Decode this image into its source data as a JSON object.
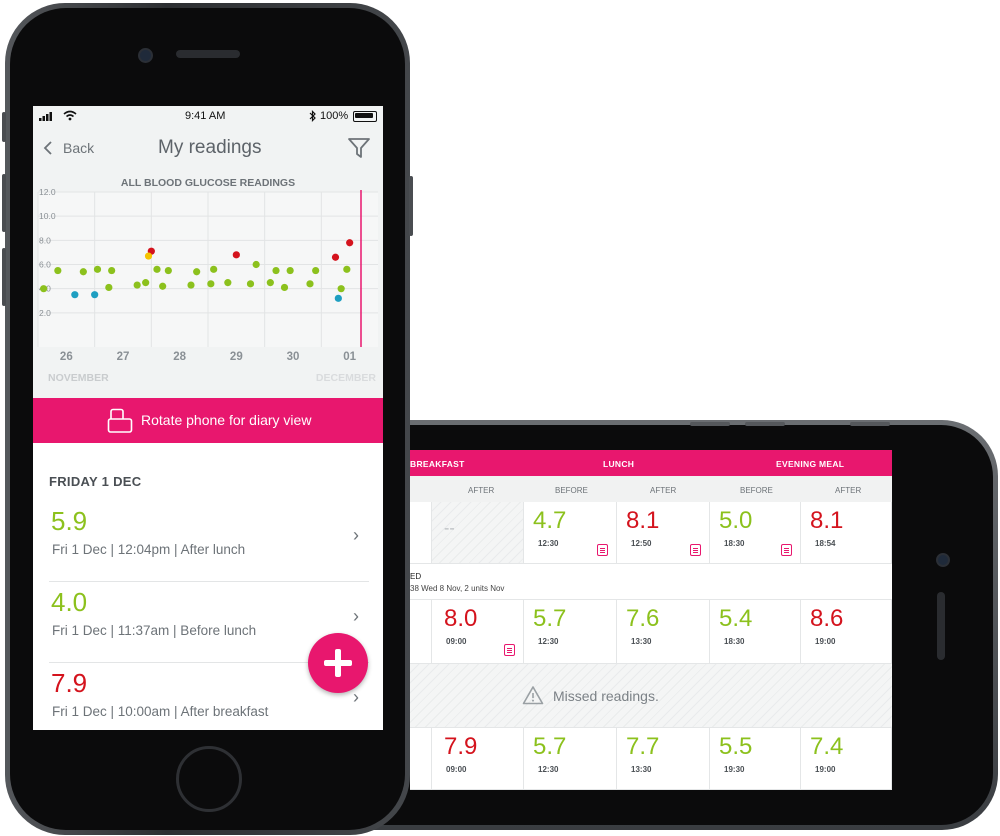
{
  "portrait": {
    "status_bar": {
      "time": "9:41 AM",
      "battery": "100%"
    },
    "nav": {
      "back_label": "Back",
      "title": "My readings"
    },
    "chart_title": "ALL BLOOD GLUCOSE READINGS",
    "rotate_label": "Rotate phone for diary view",
    "section_header": "FRIDAY 1 DEC",
    "readings": [
      {
        "value": "5.9",
        "detail": "Fri 1 Dec | 12:04pm | After lunch",
        "color": "#8cc11d"
      },
      {
        "value": "4.0",
        "detail": "Fri 1 Dec | 11:37am | Before lunch",
        "color": "#8cc11d"
      },
      {
        "value": "7.9",
        "detail": "Fri 1 Dec | 10:00am | After breakfast",
        "color": "#d4131d"
      }
    ]
  },
  "chart_data": {
    "type": "scatter",
    "title": "ALL BLOOD GLUCOSE READINGS",
    "y_ticks": [
      "12.0",
      "10.0",
      "8.0",
      "6.0",
      "4.0",
      "2.0"
    ],
    "ylim": [
      0,
      12
    ],
    "x_ticks": [
      "26",
      "27",
      "28",
      "29",
      "30",
      "01"
    ],
    "month_labels": [
      "NOVEMBER",
      "DECEMBER"
    ],
    "series": [
      {
        "color": "#8cc11d",
        "points": [
          [
            25.6,
            4.0
          ],
          [
            25.85,
            5.5
          ],
          [
            26.3,
            5.4
          ],
          [
            26.55,
            5.6
          ],
          [
            26.75,
            4.1
          ],
          [
            26.8,
            5.5
          ],
          [
            27.25,
            4.3
          ],
          [
            27.4,
            4.5
          ],
          [
            27.6,
            5.6
          ],
          [
            27.7,
            4.2
          ],
          [
            27.8,
            5.5
          ],
          [
            28.2,
            4.3
          ],
          [
            28.3,
            5.4
          ],
          [
            28.55,
            4.4
          ],
          [
            28.6,
            5.6
          ],
          [
            28.85,
            4.5
          ],
          [
            29.25,
            4.4
          ],
          [
            29.35,
            6.0
          ],
          [
            29.6,
            4.5
          ],
          [
            29.7,
            5.5
          ],
          [
            29.85,
            4.1
          ],
          [
            29.95,
            5.5
          ],
          [
            30.3,
            4.4
          ],
          [
            30.4,
            5.5
          ],
          [
            30.85,
            4.0
          ],
          [
            30.95,
            5.6
          ]
        ]
      },
      {
        "color": "#d4131d",
        "points": [
          [
            27.5,
            7.1
          ],
          [
            29.0,
            6.8
          ],
          [
            30.75,
            6.6
          ],
          [
            31.0,
            7.8
          ]
        ]
      },
      {
        "color": "#f5c400",
        "points": [
          [
            27.45,
            6.7
          ]
        ]
      },
      {
        "color": "#1e9fc1",
        "points": [
          [
            26.15,
            3.5
          ],
          [
            26.5,
            3.5
          ],
          [
            30.8,
            3.2
          ]
        ]
      }
    ]
  },
  "landscape": {
    "meals": [
      "BREAKFAST",
      "LUNCH",
      "EVENING MEAL"
    ],
    "subheaders": [
      "AFTER",
      "BEFORE",
      "AFTER",
      "BEFORE",
      "AFTER"
    ],
    "row1": [
      {
        "value": "--",
        "time": ""
      },
      {
        "value": "4.7",
        "time": "12:30"
      },
      {
        "value": "8.1",
        "time": "12:50"
      },
      {
        "value": "5.0",
        "time": "18:30"
      },
      {
        "value": "8.1",
        "time": "18:54"
      }
    ],
    "note_row": {
      "line1": "ED",
      "line2": "38 Wed 8 Nov, 2 units Nov"
    },
    "row2": [
      {
        "value": "8.0",
        "time": "09:00"
      },
      {
        "value": "5.7",
        "time": "12:30"
      },
      {
        "value": "7.6",
        "time": "13:30"
      },
      {
        "value": "5.4",
        "time": "18:30"
      },
      {
        "value": "8.6",
        "time": "19:00"
      }
    ],
    "missed_label": "Missed readings.",
    "row3": [
      {
        "value": "7.9",
        "time": "09:00"
      },
      {
        "value": "5.7",
        "time": "12:30"
      },
      {
        "value": "7.7",
        "time": "13:30"
      },
      {
        "value": "5.5",
        "time": "19:30"
      },
      {
        "value": "7.4",
        "time": "19:00"
      }
    ]
  },
  "colors": {
    "accent": "#e8176e",
    "in_range": "#8cc11d",
    "high": "#d4131d",
    "low": "#1e9fc1"
  }
}
